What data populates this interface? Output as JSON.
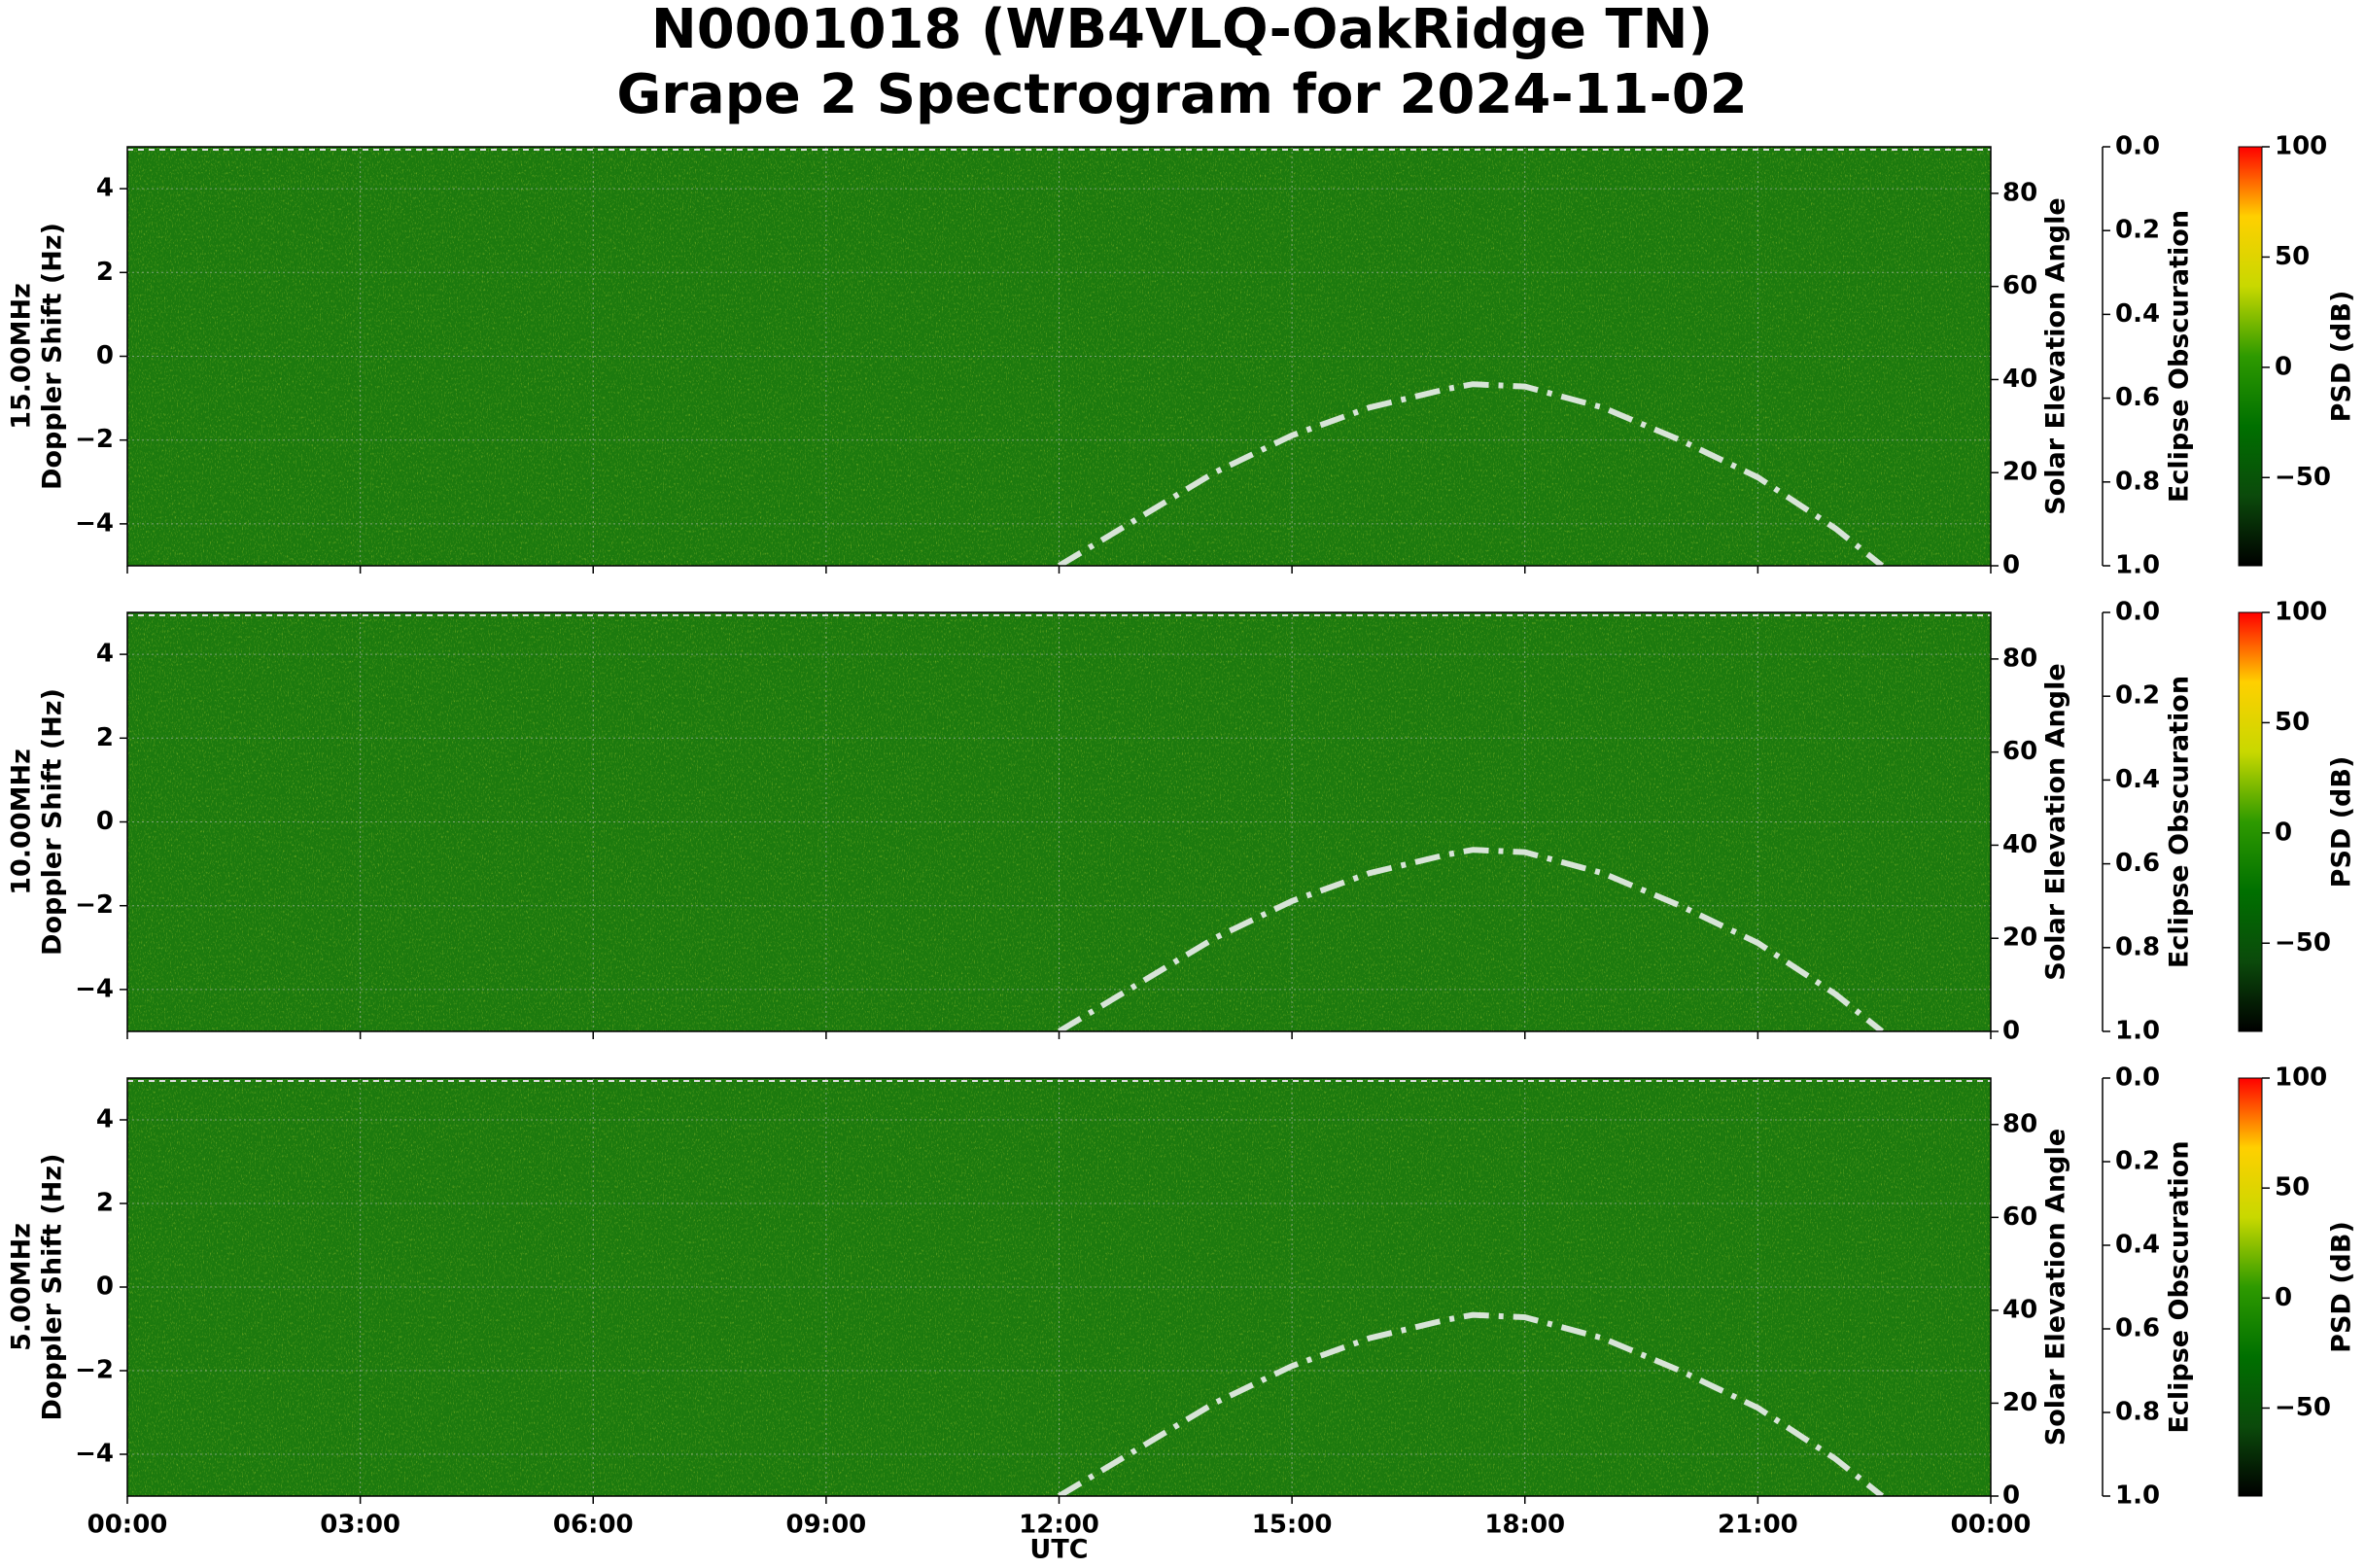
{
  "title": [
    "N0001018 (WB4VLQ-OakRidge TN)",
    "Grape 2 Spectrogram for 2024-11-02"
  ],
  "chart_data": [
    {
      "type": "spectrogram",
      "label": [
        "15.00MHz",
        "Doppler Shift (Hz)"
      ],
      "color": "#1c7a0e",
      "xlim": [
        0,
        24
      ],
      "xticks": [
        0,
        3,
        6,
        9,
        12,
        15,
        18,
        21,
        24
      ],
      "ylim": [
        -5,
        5
      ],
      "yticks": [
        {
          "value": -4,
          "label": "−4"
        },
        {
          "value": -2,
          "label": "−2"
        },
        0,
        2,
        4
      ],
      "y2label": "Solar Elevation Angle",
      "y2lim": [
        0,
        90
      ],
      "y2ticks": [
        0,
        20,
        40,
        60,
        80
      ],
      "x": [
        12,
        13,
        14,
        15,
        16,
        17,
        17.33,
        18,
        19,
        20,
        21,
        22,
        22.6
      ],
      "series": [
        {
          "color": "#d8e4d8",
          "axis": "y2",
          "values": [
            0,
            10,
            20,
            28,
            34,
            38,
            39,
            38.5,
            34,
            27,
            19,
            8,
            0
          ]
        }
      ],
      "eclipse": {
        "label": "Eclipse Obscuration",
        "lim": [
          0,
          1
        ],
        "inverted": true,
        "ticks": [
          {
            "value": 0,
            "label": "0.0"
          },
          {
            "value": 0.2,
            "label": "0.2"
          },
          {
            "value": 0.4,
            "label": "0.4"
          },
          {
            "value": 0.6,
            "label": "0.6"
          },
          {
            "value": 0.8,
            "label": "0.8"
          },
          {
            "value": 1,
            "label": "1.0"
          }
        ]
      },
      "colorbar": {
        "label": "PSD (dB)",
        "lim": [
          -90,
          100
        ],
        "ticks": [
          {
            "value": -50,
            "label": "−50"
          },
          0,
          50,
          100
        ],
        "colors": [
          "#000000",
          "#0b4a0b",
          "#007000",
          "#2e9a00",
          "#c8d800",
          "#ffd000",
          "#ff0000"
        ]
      }
    },
    {
      "type": "spectrogram",
      "label": [
        "10.00MHz",
        "Doppler Shift (Hz)"
      ],
      "color": "#1c7a0e",
      "xlim": [
        0,
        24
      ],
      "xticks": [
        0,
        3,
        6,
        9,
        12,
        15,
        18,
        21,
        24
      ],
      "ylim": [
        -5,
        5
      ],
      "yticks": [
        {
          "value": -4,
          "label": "−4"
        },
        {
          "value": -2,
          "label": "−2"
        },
        0,
        2,
        4
      ],
      "y2label": "Solar Elevation Angle",
      "y2lim": [
        0,
        90
      ],
      "y2ticks": [
        0,
        20,
        40,
        60,
        80
      ],
      "x": [
        12,
        13,
        14,
        15,
        16,
        17,
        17.33,
        18,
        19,
        20,
        21,
        22,
        22.6
      ],
      "series": [
        {
          "color": "#d8e4d8",
          "axis": "y2",
          "values": [
            0,
            10,
            20,
            28,
            34,
            38,
            39,
            38.5,
            34,
            27,
            19,
            8,
            0
          ]
        }
      ],
      "eclipse": {
        "label": "Eclipse Obscuration",
        "lim": [
          0,
          1
        ],
        "inverted": true,
        "ticks": [
          {
            "value": 0,
            "label": "0.0"
          },
          {
            "value": 0.2,
            "label": "0.2"
          },
          {
            "value": 0.4,
            "label": "0.4"
          },
          {
            "value": 0.6,
            "label": "0.6"
          },
          {
            "value": 0.8,
            "label": "0.8"
          },
          {
            "value": 1,
            "label": "1.0"
          }
        ]
      },
      "colorbar": {
        "label": "PSD (dB)",
        "lim": [
          -90,
          100
        ],
        "ticks": [
          {
            "value": -50,
            "label": "−50"
          },
          0,
          50,
          100
        ],
        "colors": [
          "#000000",
          "#0b4a0b",
          "#007000",
          "#2e9a00",
          "#c8d800",
          "#ffd000",
          "#ff0000"
        ]
      }
    },
    {
      "type": "spectrogram",
      "label": [
        "5.00MHz",
        "Doppler Shift (Hz)"
      ],
      "color": "#1c7a0e",
      "xlim": [
        0,
        24
      ],
      "xlabel": "UTC",
      "xticks": [
        {
          "value": 0,
          "label": "00:00"
        },
        {
          "value": 3,
          "label": "03:00"
        },
        {
          "value": 6,
          "label": "06:00"
        },
        {
          "value": 9,
          "label": "09:00"
        },
        {
          "value": 12,
          "label": "12:00"
        },
        {
          "value": 15,
          "label": "15:00"
        },
        {
          "value": 18,
          "label": "18:00"
        },
        {
          "value": 21,
          "label": "21:00"
        },
        {
          "value": 24,
          "label": "00:00"
        }
      ],
      "ylim": [
        -5,
        5
      ],
      "yticks": [
        {
          "value": -4,
          "label": "−4"
        },
        {
          "value": -2,
          "label": "−2"
        },
        0,
        2,
        4
      ],
      "y2label": "Solar Elevation Angle",
      "y2lim": [
        0,
        90
      ],
      "y2ticks": [
        0,
        20,
        40,
        60,
        80
      ],
      "x": [
        12,
        13,
        14,
        15,
        16,
        17,
        17.33,
        18,
        19,
        20,
        21,
        22,
        22.6
      ],
      "series": [
        {
          "color": "#d8e4d8",
          "axis": "y2",
          "values": [
            0,
            10,
            20,
            28,
            34,
            38,
            39,
            38.5,
            34,
            27,
            19,
            8,
            0
          ]
        }
      ],
      "eclipse": {
        "label": "Eclipse Obscuration",
        "lim": [
          0,
          1
        ],
        "inverted": true,
        "ticks": [
          {
            "value": 0,
            "label": "0.0"
          },
          {
            "value": 0.2,
            "label": "0.2"
          },
          {
            "value": 0.4,
            "label": "0.4"
          },
          {
            "value": 0.6,
            "label": "0.6"
          },
          {
            "value": 0.8,
            "label": "0.8"
          },
          {
            "value": 1,
            "label": "1.0"
          }
        ]
      },
      "colorbar": {
        "label": "PSD (dB)",
        "lim": [
          -90,
          100
        ],
        "ticks": [
          {
            "value": -50,
            "label": "−50"
          },
          0,
          50,
          100
        ],
        "colors": [
          "#000000",
          "#0b4a0b",
          "#007000",
          "#2e9a00",
          "#c8d800",
          "#ffd000",
          "#ff0000"
        ]
      }
    }
  ]
}
